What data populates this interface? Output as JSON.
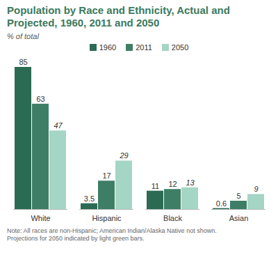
{
  "chart_data": {
    "type": "bar",
    "title": "Population by Race and Ethnicity, Actual and Projected, 1960, 2011 and 2050",
    "subtitle": "% of total",
    "categories": [
      "White",
      "Hispanic",
      "Black",
      "Asian"
    ],
    "series": [
      {
        "name": "1960",
        "color": "#2c6b53",
        "values": [
          85,
          3.5,
          11,
          0.6
        ]
      },
      {
        "name": "2011",
        "color": "#3f7e66",
        "values": [
          63,
          17,
          12,
          5
        ]
      },
      {
        "name": "2050",
        "color": "#a5d5c4",
        "values": [
          47,
          29,
          13,
          9
        ]
      }
    ],
    "ylim": [
      0,
      85
    ],
    "tick_labels": "x",
    "data_labels": true,
    "legend": "top",
    "annotations": [
      "Note: All races are non-Hispanic; American Indian/Alaska Native not shown.",
      "Projections for 2050 indicated by light green bars."
    ]
  }
}
